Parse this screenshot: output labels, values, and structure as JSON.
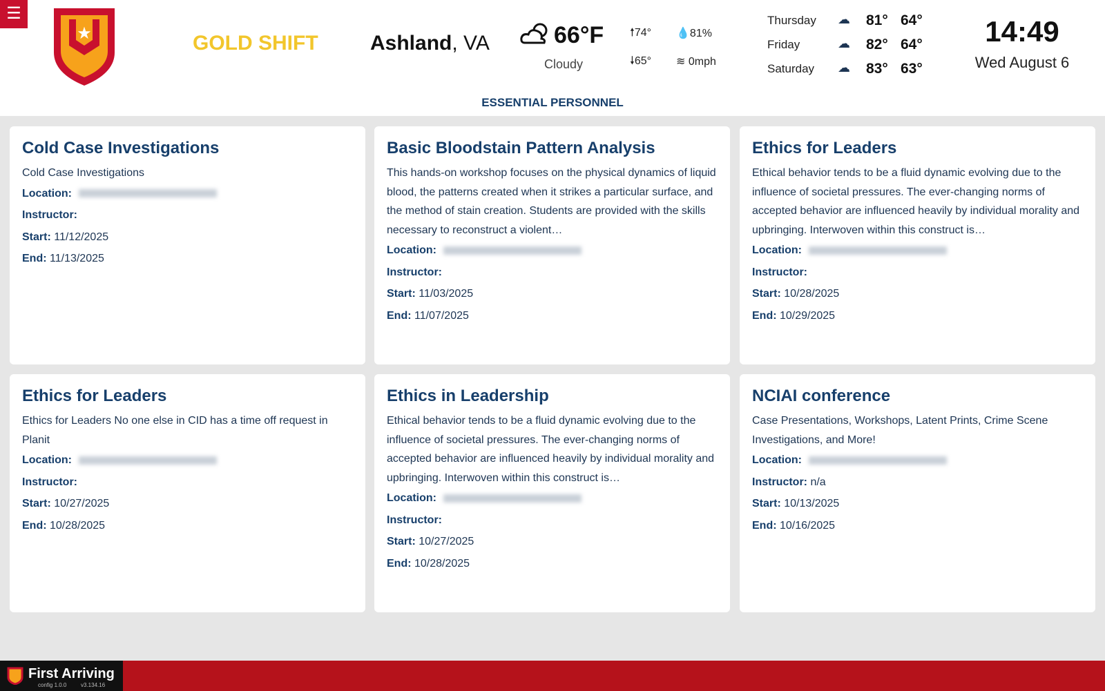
{
  "header": {
    "shift": "GOLD SHIFT",
    "city": "Ashland",
    "region": ", VA",
    "weather": {
      "temperature": "66°F",
      "condition": "Cloudy",
      "high": "74°",
      "low": "65°",
      "humidity": "81%",
      "wind": "0mph"
    },
    "forecast": [
      {
        "day": "Thursday",
        "high": "81°",
        "low": "64°"
      },
      {
        "day": "Friday",
        "high": "82°",
        "low": "64°"
      },
      {
        "day": "Saturday",
        "high": "83°",
        "low": "63°"
      }
    ],
    "time": "14:49",
    "date": "Wed August 6"
  },
  "section_title": "ESSENTIAL PERSONNEL",
  "field_labels": {
    "location": "Location:",
    "instructor": "Instructor:",
    "start": "Start:",
    "end": "End:"
  },
  "cards": [
    {
      "title": "Cold Case Investigations",
      "description": "Cold Case Investigations",
      "start": "11/12/2025",
      "end": "11/13/2025"
    },
    {
      "title": "Basic Bloodstain Pattern Analysis",
      "description": "This hands-on workshop focuses on the physical dynamics of liquid blood, the patterns created when it strikes a particular surface, and the method of stain creation. Students are provided with the skills necessary to reconstruct a violent…",
      "start": "11/03/2025",
      "end": "11/07/2025"
    },
    {
      "title": "Ethics for Leaders",
      "description": "Ethical behavior tends to be a fluid dynamic evolving due to the influence of societal pressures. The ever-changing norms of accepted behavior are influenced heavily by individual morality and upbringing. Interwoven within this construct is…",
      "start": "10/28/2025",
      "end": "10/29/2025"
    },
    {
      "title": "Ethics for Leaders",
      "description": "Ethics for Leaders No one else in CID has a time off request in Planit",
      "start": "10/27/2025",
      "end": "10/28/2025"
    },
    {
      "title": "Ethics in Leadership",
      "description": "Ethical behavior tends to be a fluid dynamic evolving due to the influence of societal pressures. The ever-changing norms of accepted behavior are influenced heavily by individual morality and upbringing. Interwoven within this construct is…",
      "start": "10/27/2025",
      "end": "10/28/2025"
    },
    {
      "title": "NCIAI conference",
      "description": "Case Presentations, Workshops, Latent Prints, Crime Scene Investigations, and More!",
      "instructor": "n/a",
      "start": "10/13/2025",
      "end": "10/16/2025"
    }
  ],
  "footer": {
    "brand": "First Arriving",
    "config": "config 1.0.0",
    "version": "v3.134.16"
  }
}
